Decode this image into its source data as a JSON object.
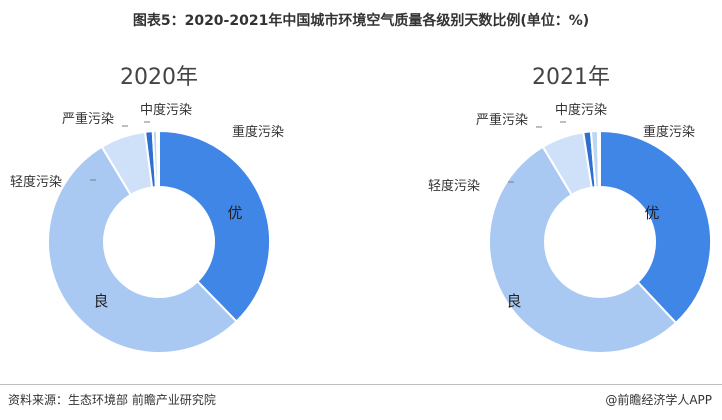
{
  "page": {
    "title": "图表5：2020-2021年中国城市环境空气质量各级别天数比例(单位：%)",
    "source": "资料来源：生态环境部 前瞻产业研究院",
    "credit": "@前瞻经济学人APP"
  },
  "colors": {
    "优": "#3f86e6",
    "良": "#a9c9f2",
    "轻度污染": "#cfe1f8",
    "中度污染": "#2f6fd0",
    "重度污染": "#bcd6f4",
    "严重污染": "#e3eefb",
    "leader_line": "#7f7f7f"
  },
  "chart_data": [
    {
      "type": "pie",
      "title": "2020年",
      "categories": [
        "优",
        "良",
        "轻度污染",
        "中度污染",
        "重度污染",
        "严重污染"
      ],
      "values": [
        37.7,
        53.7,
        6.6,
        1.1,
        0.6,
        0.3
      ],
      "inner_labels": [
        "优",
        "良"
      ],
      "outer_labels": [
        "轻度污染",
        "中度污染",
        "重度污染",
        "严重污染"
      ]
    },
    {
      "type": "pie",
      "title": "2021年",
      "categories": [
        "优",
        "良",
        "轻度污染",
        "中度污染",
        "重度污染",
        "严重污染"
      ],
      "values": [
        38.0,
        53.4,
        6.2,
        1.1,
        1.0,
        0.3
      ],
      "inner_labels": [
        "优",
        "良"
      ],
      "outer_labels": [
        "轻度污染",
        "中度污染",
        "重度污染",
        "严重污染"
      ]
    }
  ]
}
